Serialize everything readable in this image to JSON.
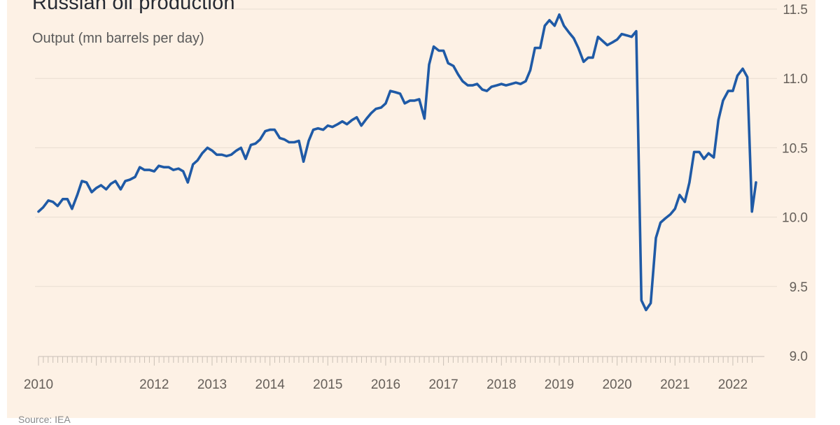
{
  "title": "Russian oil production",
  "subtitle": "Output (mn barrels per day)",
  "source": "Source: IEA",
  "colors": {
    "background": "#fdf1e5",
    "line": "#1f5aa6",
    "grid": "#e8ddd2",
    "axis_text": "#66605a"
  },
  "chart_data": {
    "type": "line",
    "title": "Russian oil production",
    "ylabel": "Output (mn barrels per day)",
    "xlabel": "",
    "ylim": [
      9.0,
      11.5
    ],
    "yticks": [
      9.0,
      9.5,
      10.0,
      10.5,
      11.0,
      11.5
    ],
    "ytick_labels": [
      "9.0",
      "9.5",
      "10.0",
      "10.5",
      "11.0",
      "11.5"
    ],
    "xlim": [
      2010.0,
      2022.4
    ],
    "xtick_labels": [
      {
        "year": 2010,
        "label": "2010"
      },
      {
        "year": 2012,
        "label": "2012"
      },
      {
        "year": 2013,
        "label": "2013"
      },
      {
        "year": 2014,
        "label": "2014"
      },
      {
        "year": 2015,
        "label": "2015"
      },
      {
        "year": 2016,
        "label": "2016"
      },
      {
        "year": 2017,
        "label": "2017"
      },
      {
        "year": 2018,
        "label": "2018"
      },
      {
        "year": 2019,
        "label": "2019"
      },
      {
        "year": 2020,
        "label": "2020"
      },
      {
        "year": 2021,
        "label": "2021"
      },
      {
        "year": 2022,
        "label": "2022"
      }
    ],
    "grid": true,
    "y_axis_position": "right",
    "series": [
      {
        "name": "Russian oil production",
        "points": [
          [
            2010.0,
            10.04
          ],
          [
            2010.08,
            10.07
          ],
          [
            2010.17,
            10.12
          ],
          [
            2010.25,
            10.11
          ],
          [
            2010.33,
            10.08
          ],
          [
            2010.42,
            10.13
          ],
          [
            2010.5,
            10.13
          ],
          [
            2010.58,
            10.06
          ],
          [
            2010.67,
            10.16
          ],
          [
            2010.75,
            10.26
          ],
          [
            2010.83,
            10.25
          ],
          [
            2010.92,
            10.18
          ],
          [
            2011.0,
            10.21
          ],
          [
            2011.08,
            10.23
          ],
          [
            2011.17,
            10.2
          ],
          [
            2011.25,
            10.24
          ],
          [
            2011.33,
            10.26
          ],
          [
            2011.42,
            10.2
          ],
          [
            2011.5,
            10.26
          ],
          [
            2011.58,
            10.27
          ],
          [
            2011.67,
            10.29
          ],
          [
            2011.75,
            10.36
          ],
          [
            2011.83,
            10.34
          ],
          [
            2011.92,
            10.34
          ],
          [
            2012.0,
            10.33
          ],
          [
            2012.08,
            10.37
          ],
          [
            2012.17,
            10.36
          ],
          [
            2012.25,
            10.36
          ],
          [
            2012.33,
            10.34
          ],
          [
            2012.42,
            10.35
          ],
          [
            2012.5,
            10.33
          ],
          [
            2012.58,
            10.25
          ],
          [
            2012.67,
            10.38
          ],
          [
            2012.75,
            10.41
          ],
          [
            2012.83,
            10.46
          ],
          [
            2012.92,
            10.5
          ],
          [
            2013.0,
            10.48
          ],
          [
            2013.08,
            10.45
          ],
          [
            2013.17,
            10.45
          ],
          [
            2013.25,
            10.44
          ],
          [
            2013.33,
            10.45
          ],
          [
            2013.42,
            10.48
          ],
          [
            2013.5,
            10.5
          ],
          [
            2013.58,
            10.42
          ],
          [
            2013.67,
            10.52
          ],
          [
            2013.75,
            10.53
          ],
          [
            2013.83,
            10.56
          ],
          [
            2013.92,
            10.62
          ],
          [
            2014.0,
            10.63
          ],
          [
            2014.08,
            10.63
          ],
          [
            2014.17,
            10.57
          ],
          [
            2014.25,
            10.56
          ],
          [
            2014.33,
            10.54
          ],
          [
            2014.42,
            10.54
          ],
          [
            2014.5,
            10.55
          ],
          [
            2014.58,
            10.4
          ],
          [
            2014.67,
            10.55
          ],
          [
            2014.75,
            10.63
          ],
          [
            2014.83,
            10.64
          ],
          [
            2014.92,
            10.63
          ],
          [
            2015.0,
            10.66
          ],
          [
            2015.08,
            10.65
          ],
          [
            2015.17,
            10.67
          ],
          [
            2015.25,
            10.69
          ],
          [
            2015.33,
            10.67
          ],
          [
            2015.42,
            10.7
          ],
          [
            2015.5,
            10.72
          ],
          [
            2015.58,
            10.66
          ],
          [
            2015.67,
            10.71
          ],
          [
            2015.75,
            10.75
          ],
          [
            2015.83,
            10.78
          ],
          [
            2015.92,
            10.79
          ],
          [
            2016.0,
            10.82
          ],
          [
            2016.08,
            10.91
          ],
          [
            2016.17,
            10.9
          ],
          [
            2016.25,
            10.89
          ],
          [
            2016.33,
            10.82
          ],
          [
            2016.42,
            10.84
          ],
          [
            2016.5,
            10.84
          ],
          [
            2016.58,
            10.85
          ],
          [
            2016.67,
            10.71
          ],
          [
            2016.75,
            11.1
          ],
          [
            2016.83,
            11.23
          ],
          [
            2016.92,
            11.2
          ],
          [
            2017.0,
            11.2
          ],
          [
            2017.08,
            11.11
          ],
          [
            2017.17,
            11.09
          ],
          [
            2017.25,
            11.03
          ],
          [
            2017.33,
            10.98
          ],
          [
            2017.42,
            10.95
          ],
          [
            2017.5,
            10.95
          ],
          [
            2017.58,
            10.96
          ],
          [
            2017.67,
            10.92
          ],
          [
            2017.75,
            10.91
          ],
          [
            2017.83,
            10.94
          ],
          [
            2017.92,
            10.95
          ],
          [
            2018.0,
            10.96
          ],
          [
            2018.08,
            10.95
          ],
          [
            2018.17,
            10.96
          ],
          [
            2018.25,
            10.97
          ],
          [
            2018.33,
            10.96
          ],
          [
            2018.42,
            10.98
          ],
          [
            2018.5,
            11.06
          ],
          [
            2018.58,
            11.22
          ],
          [
            2018.67,
            11.22
          ],
          [
            2018.75,
            11.38
          ],
          [
            2018.83,
            11.42
          ],
          [
            2018.92,
            11.38
          ],
          [
            2019.0,
            11.46
          ],
          [
            2019.08,
            11.38
          ],
          [
            2019.17,
            11.33
          ],
          [
            2019.25,
            11.29
          ],
          [
            2019.33,
            11.22
          ],
          [
            2019.42,
            11.12
          ],
          [
            2019.5,
            11.15
          ],
          [
            2019.58,
            11.15
          ],
          [
            2019.67,
            11.3
          ],
          [
            2019.75,
            11.27
          ],
          [
            2019.83,
            11.24
          ],
          [
            2019.92,
            11.26
          ],
          [
            2020.0,
            11.28
          ],
          [
            2020.08,
            11.32
          ],
          [
            2020.17,
            11.31
          ],
          [
            2020.25,
            11.3
          ],
          [
            2020.33,
            11.34
          ],
          [
            2020.42,
            9.4
          ],
          [
            2020.5,
            9.33
          ],
          [
            2020.58,
            9.38
          ],
          [
            2020.67,
            9.85
          ],
          [
            2020.75,
            9.96
          ],
          [
            2020.83,
            9.99
          ],
          [
            2020.92,
            10.02
          ],
          [
            2021.0,
            10.06
          ],
          [
            2021.08,
            10.16
          ],
          [
            2021.17,
            10.11
          ],
          [
            2021.25,
            10.25
          ],
          [
            2021.33,
            10.47
          ],
          [
            2021.42,
            10.47
          ],
          [
            2021.5,
            10.42
          ],
          [
            2021.58,
            10.46
          ],
          [
            2021.67,
            10.43
          ],
          [
            2021.75,
            10.7
          ],
          [
            2021.83,
            10.84
          ],
          [
            2021.92,
            10.91
          ],
          [
            2022.0,
            10.91
          ],
          [
            2022.08,
            11.02
          ],
          [
            2022.17,
            11.07
          ],
          [
            2022.25,
            11.01
          ],
          [
            2022.33,
            10.04
          ],
          [
            2022.4,
            10.25
          ]
        ]
      }
    ]
  }
}
